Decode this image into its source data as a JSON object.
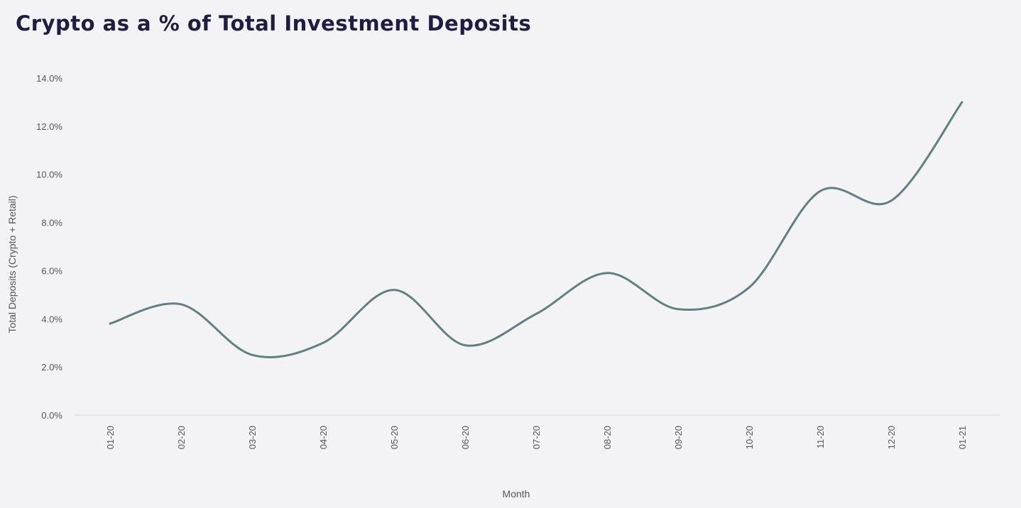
{
  "chart_data": {
    "type": "line",
    "title": "Crypto as a % of Total Investment Deposits",
    "xlabel": "Month",
    "ylabel": "Total Deposits (Crypto + Retail)",
    "categories": [
      "01-20",
      "02-20",
      "03-20",
      "04-20",
      "05-20",
      "06-20",
      "07-20",
      "08-20",
      "09-20",
      "10-20",
      "11-20",
      "12-20",
      "01-21"
    ],
    "series": [
      {
        "values": [
          3.8,
          4.6,
          2.5,
          3.0,
          5.2,
          2.9,
          4.2,
          5.9,
          4.4,
          5.3,
          9.3,
          8.9,
          13.0
        ]
      }
    ],
    "ylim": [
      0,
      14
    ],
    "yticks": [
      "0.0%",
      "2.0%",
      "4.0%",
      "6.0%",
      "8.0%",
      "10.0%",
      "12.0%",
      "14.0%"
    ],
    "grid": false,
    "line_color": "#5f8183",
    "title_color": "#1f1d45"
  }
}
